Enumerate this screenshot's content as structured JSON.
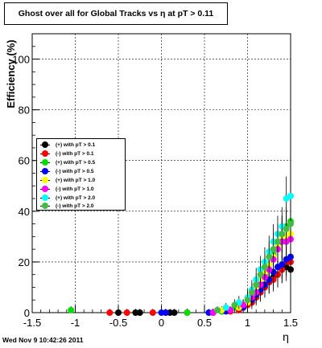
{
  "title": "Ghost over all for Global Tracks vs η at pT > 0.11",
  "timestamp": "Wed Nov  9 10:42:26 2011",
  "chart_data": {
    "type": "scatter",
    "title": "Ghost over all for Global Tracks vs η at pT > 0.11",
    "xlabel": "η",
    "ylabel": "Efficiency (%)",
    "xlim": [
      -1.5,
      1.5
    ],
    "ylim": [
      0,
      110
    ],
    "xticks": [
      "-1.5",
      "-1",
      "-0.5",
      "0",
      "0.5",
      "1",
      "1.5"
    ],
    "yticks": [
      "0",
      "20",
      "40",
      "60",
      "80",
      "100"
    ],
    "grid": true,
    "legend_position": "left-middle",
    "series": [
      {
        "name": "(+) with pT > 0.1",
        "color": "#000000",
        "x": [
          -0.5,
          -0.3,
          -0.25,
          0.1,
          0.15,
          0.6,
          0.7,
          0.8,
          0.9,
          0.95,
          1.0,
          1.05,
          1.1,
          1.15,
          1.2,
          1.25,
          1.3,
          1.35,
          1.4,
          1.45,
          1.5
        ],
        "y": [
          0,
          0,
          0,
          0,
          0,
          0,
          0.5,
          1,
          2,
          3,
          4,
          6,
          7,
          9,
          10,
          12,
          14,
          15,
          17,
          18,
          17
        ]
      },
      {
        "name": "(-) with pT > 0.1",
        "color": "#ff0000",
        "x": [
          -0.6,
          -0.4,
          -0.1,
          0.05,
          0.3,
          0.6,
          0.8,
          0.9,
          1.0,
          1.05,
          1.1,
          1.15,
          1.2,
          1.25,
          1.3,
          1.35,
          1.4,
          1.45,
          1.5
        ],
        "y": [
          0,
          0,
          0,
          0,
          0,
          0,
          0.5,
          1,
          3,
          4,
          6,
          8,
          10,
          12,
          13,
          15,
          17,
          20,
          20
        ]
      },
      {
        "name": "(+) with pT > 0.5",
        "color": "#00dd00",
        "x": [
          -1.05,
          0.3,
          0.7,
          0.85,
          0.95,
          1.05,
          1.1,
          1.15,
          1.2,
          1.25,
          1.3,
          1.35,
          1.4,
          1.45,
          1.5
        ],
        "y": [
          1,
          0,
          0.5,
          2,
          3,
          6,
          9,
          12,
          15,
          19,
          23,
          27,
          31,
          34,
          36
        ]
      },
      {
        "name": "(-) with pT > 0.5",
        "color": "#0000ff",
        "x": [
          0,
          0.05,
          0.55,
          0.75,
          0.95,
          1.05,
          1.1,
          1.15,
          1.2,
          1.25,
          1.3,
          1.35,
          1.4,
          1.45,
          1.5
        ],
        "y": [
          0,
          0,
          0,
          0.5,
          2,
          5,
          7,
          9,
          11,
          13,
          16,
          18,
          19,
          21,
          22
        ]
      },
      {
        "name": "(+) with pT > 1.0",
        "color": "#ffff00",
        "x": [
          0.7,
          0.9,
          1.0,
          1.05,
          1.1,
          1.15,
          1.2,
          1.25,
          1.3,
          1.35,
          1.4,
          1.45,
          1.5
        ],
        "y": [
          1,
          2,
          4,
          7,
          10,
          13,
          16,
          19,
          22,
          26,
          29,
          30,
          31
        ]
      },
      {
        "name": "(-) with pT > 1.0",
        "color": "#ff00ff",
        "x": [
          0.6,
          0.8,
          0.95,
          1.05,
          1.1,
          1.15,
          1.2,
          1.25,
          1.3,
          1.35,
          1.4,
          1.45,
          1.5
        ],
        "y": [
          0,
          1,
          3,
          6,
          8,
          11,
          14,
          17,
          21,
          25,
          28,
          28,
          29
        ]
      },
      {
        "name": "(+) with pT > 2.0",
        "color": "#00ffff",
        "x": [
          0.75,
          0.9,
          1.0,
          1.05,
          1.1,
          1.15,
          1.2,
          1.25,
          1.3,
          1.35,
          1.4,
          1.45,
          1.5
        ],
        "y": [
          2,
          4,
          6,
          9,
          13,
          17,
          20,
          24,
          28,
          31,
          34,
          45,
          46
        ]
      },
      {
        "name": "(-) with pT > 2.0",
        "color": "#44bb44",
        "x": [
          0.65,
          0.85,
          1.0,
          1.05,
          1.1,
          1.15,
          1.2,
          1.25,
          1.3,
          1.35,
          1.4,
          1.45,
          1.5
        ],
        "y": [
          1,
          3,
          5,
          8,
          11,
          15,
          18,
          22,
          25,
          28,
          31,
          33,
          35
        ]
      }
    ]
  }
}
